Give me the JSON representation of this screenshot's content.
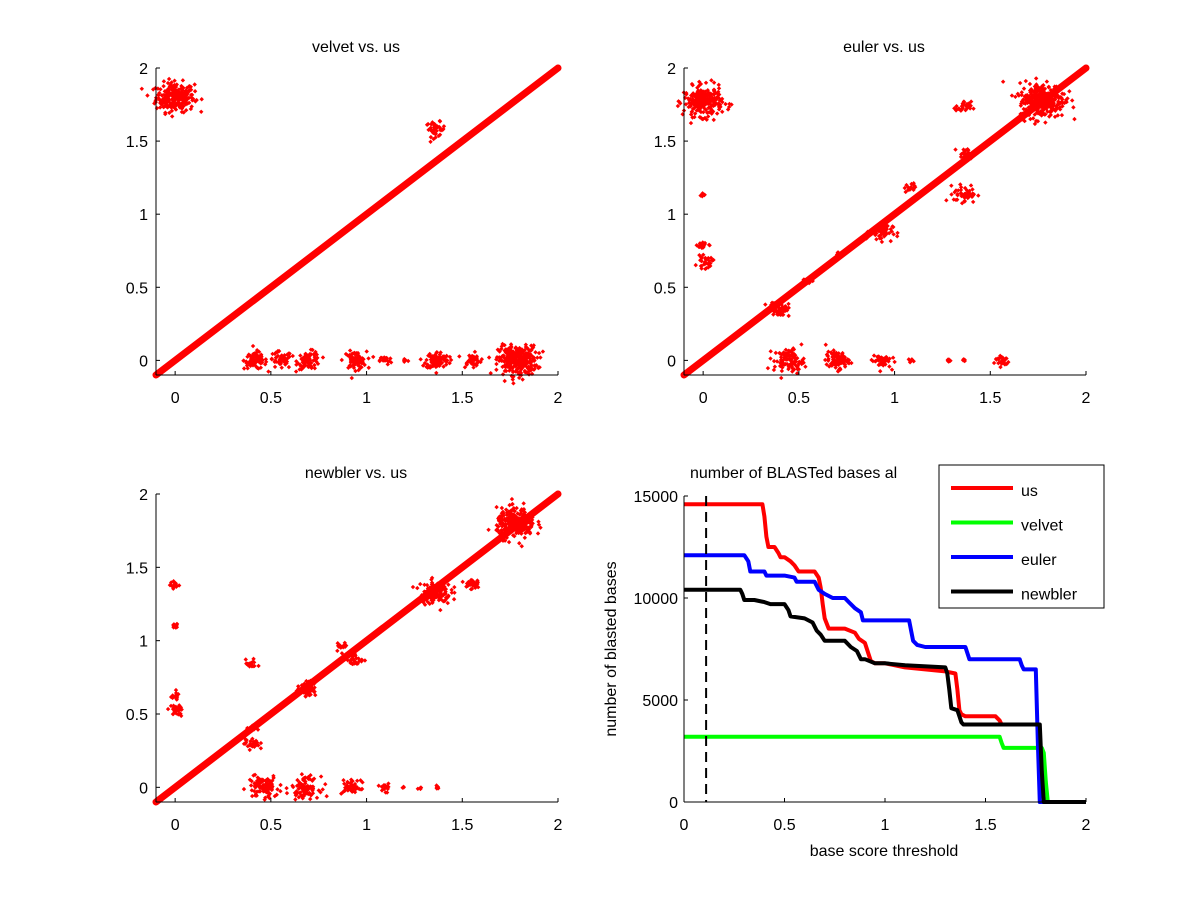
{
  "figure": {
    "background": "#ffffff"
  },
  "chart_data": [
    {
      "type": "scatter",
      "title": "velvet vs. us",
      "xlabel": "",
      "ylabel": "",
      "xlim": [
        -0.1,
        2
      ],
      "ylim": [
        -0.1,
        2
      ],
      "xticks": [
        0,
        0.5,
        1,
        1.5,
        2
      ],
      "xtick_labels": [
        "0",
        "0.5",
        "1",
        "1.5",
        "2"
      ],
      "yticks": [
        0,
        0.5,
        1,
        1.5,
        2
      ],
      "ytick_labels": [
        "0",
        "0.5",
        "1",
        "1.5",
        "2"
      ],
      "color": "#ff0000",
      "diagonal": {
        "from": -0.1,
        "to": 2
      },
      "clusters": [
        {
          "x": 0.0,
          "y": 1.8,
          "spread": 0.05,
          "count": 260
        },
        {
          "x": 1.36,
          "y": 1.58,
          "spread": 0.025,
          "count": 40
        },
        {
          "x": 0.42,
          "y": 0.0,
          "spread": 0.03,
          "count": 80
        },
        {
          "x": 0.55,
          "y": 0.0,
          "spread": 0.03,
          "count": 50
        },
        {
          "x": 0.7,
          "y": 0.0,
          "spread": 0.03,
          "count": 80
        },
        {
          "x": 0.94,
          "y": 0.0,
          "spread": 0.03,
          "count": 80
        },
        {
          "x": 1.1,
          "y": 0.0,
          "spread": 0.015,
          "count": 20
        },
        {
          "x": 1.2,
          "y": 0.0,
          "spread": 0.01,
          "count": 8
        },
        {
          "x": 1.37,
          "y": 0.0,
          "spread": 0.03,
          "count": 100
        },
        {
          "x": 1.55,
          "y": 0.0,
          "spread": 0.025,
          "count": 40
        },
        {
          "x": 1.79,
          "y": 0.0,
          "spread": 0.05,
          "count": 320
        }
      ]
    },
    {
      "type": "scatter",
      "title": "euler vs. us",
      "xlabel": "",
      "ylabel": "",
      "xlim": [
        -0.1,
        2
      ],
      "ylim": [
        -0.1,
        2
      ],
      "xticks": [
        0,
        0.5,
        1,
        1.5,
        2
      ],
      "xtick_labels": [
        "0",
        "0.5",
        "1",
        "1.5",
        "2"
      ],
      "yticks": [
        0,
        0.5,
        1,
        1.5,
        2
      ],
      "ytick_labels": [
        "0",
        "0.5",
        "1",
        "1.5",
        "2"
      ],
      "color": "#ff0000",
      "diagonal": {
        "from": -0.1,
        "to": 2
      },
      "clusters": [
        {
          "x": 0.0,
          "y": 1.77,
          "spread": 0.05,
          "count": 260
        },
        {
          "x": 0.0,
          "y": 1.13,
          "spread": 0.01,
          "count": 6
        },
        {
          "x": 0.0,
          "y": 0.79,
          "spread": 0.015,
          "count": 20
        },
        {
          "x": 0.01,
          "y": 0.67,
          "spread": 0.02,
          "count": 30
        },
        {
          "x": 0.4,
          "y": 0.35,
          "spread": 0.025,
          "count": 50
        },
        {
          "x": 0.55,
          "y": 0.55,
          "spread": 0.015,
          "count": 15
        },
        {
          "x": 0.71,
          "y": 0.72,
          "spread": 0.012,
          "count": 12
        },
        {
          "x": 0.93,
          "y": 0.88,
          "spread": 0.03,
          "count": 50
        },
        {
          "x": 1.08,
          "y": 1.18,
          "spread": 0.015,
          "count": 15
        },
        {
          "x": 1.36,
          "y": 1.73,
          "spread": 0.02,
          "count": 30
        },
        {
          "x": 1.37,
          "y": 1.41,
          "spread": 0.02,
          "count": 30
        },
        {
          "x": 1.37,
          "y": 1.14,
          "spread": 0.03,
          "count": 50
        },
        {
          "x": 1.77,
          "y": 1.78,
          "spread": 0.06,
          "count": 320
        },
        {
          "x": 0.45,
          "y": 0.0,
          "spread": 0.04,
          "count": 100
        },
        {
          "x": 0.7,
          "y": 0.0,
          "spread": 0.03,
          "count": 80
        },
        {
          "x": 0.93,
          "y": 0.0,
          "spread": 0.025,
          "count": 50
        },
        {
          "x": 1.08,
          "y": 0.0,
          "spread": 0.006,
          "count": 6
        },
        {
          "x": 1.28,
          "y": 0.0,
          "spread": 0.006,
          "count": 6
        },
        {
          "x": 1.36,
          "y": 0.0,
          "spread": 0.006,
          "count": 6
        },
        {
          "x": 1.56,
          "y": 0.0,
          "spread": 0.02,
          "count": 30
        }
      ]
    },
    {
      "type": "scatter",
      "title": "newbler vs. us",
      "xlabel": "",
      "ylabel": "",
      "xlim": [
        -0.1,
        2
      ],
      "ylim": [
        -0.1,
        2
      ],
      "xticks": [
        0,
        0.5,
        1,
        1.5,
        2
      ],
      "xtick_labels": [
        "0",
        "0.5",
        "1",
        "1.5",
        "2"
      ],
      "yticks": [
        0,
        0.5,
        1,
        1.5,
        2
      ],
      "ytick_labels": [
        "0",
        "0.5",
        "1",
        "1.5",
        "2"
      ],
      "color": "#ff0000",
      "diagonal": {
        "from": -0.1,
        "to": 2
      },
      "clusters": [
        {
          "x": 0.0,
          "y": 1.38,
          "spread": 0.012,
          "count": 15
        },
        {
          "x": 0.0,
          "y": 1.1,
          "spread": 0.012,
          "count": 12
        },
        {
          "x": 0.0,
          "y": 0.62,
          "spread": 0.012,
          "count": 15
        },
        {
          "x": 0.0,
          "y": 0.52,
          "spread": 0.02,
          "count": 30
        },
        {
          "x": 0.4,
          "y": 0.84,
          "spread": 0.015,
          "count": 20
        },
        {
          "x": 0.4,
          "y": 0.3,
          "spread": 0.02,
          "count": 30
        },
        {
          "x": 0.4,
          "y": 0.4,
          "spread": 0.015,
          "count": 12
        },
        {
          "x": 0.69,
          "y": 0.67,
          "spread": 0.025,
          "count": 50
        },
        {
          "x": 0.87,
          "y": 0.96,
          "spread": 0.015,
          "count": 20
        },
        {
          "x": 0.94,
          "y": 0.87,
          "spread": 0.02,
          "count": 30
        },
        {
          "x": 1.36,
          "y": 1.33,
          "spread": 0.04,
          "count": 120
        },
        {
          "x": 1.55,
          "y": 1.39,
          "spread": 0.02,
          "count": 30
        },
        {
          "x": 1.78,
          "y": 1.8,
          "spread": 0.05,
          "count": 260
        },
        {
          "x": 0.46,
          "y": 0.0,
          "spread": 0.04,
          "count": 100
        },
        {
          "x": 0.68,
          "y": 0.0,
          "spread": 0.035,
          "count": 90
        },
        {
          "x": 0.92,
          "y": 0.0,
          "spread": 0.025,
          "count": 50
        },
        {
          "x": 1.1,
          "y": 0.0,
          "spread": 0.015,
          "count": 15
        },
        {
          "x": 1.19,
          "y": 0.0,
          "spread": 0.005,
          "count": 4
        },
        {
          "x": 1.28,
          "y": 0.0,
          "spread": 0.005,
          "count": 4
        },
        {
          "x": 1.37,
          "y": 0.0,
          "spread": 0.008,
          "count": 8
        }
      ]
    },
    {
      "type": "line",
      "title": "number of BLASTed bases al",
      "xlabel": "base score threshold",
      "ylabel": "number of blasted bases",
      "xlim": [
        0,
        2
      ],
      "ylim": [
        0,
        15000
      ],
      "xticks": [
        0,
        0.5,
        1,
        1.5,
        2
      ],
      "xtick_labels": [
        "0",
        "0.5",
        "1",
        "1.5",
        "2"
      ],
      "yticks": [
        0,
        5000,
        10000,
        15000
      ],
      "ytick_labels": [
        "0",
        "5000",
        "10000",
        "15000"
      ],
      "grid": false,
      "legend_position": "top-right",
      "reference_line": {
        "x": 0.11,
        "style": "dashed",
        "color": "#000000"
      },
      "series": [
        {
          "name": "us",
          "color": "#ff0000",
          "x": [
            0,
            0.39,
            0.4,
            0.41,
            0.42,
            0.45,
            0.47,
            0.48,
            0.5,
            0.53,
            0.55,
            0.57,
            0.6,
            0.65,
            0.67,
            0.68,
            0.69,
            0.7,
            0.72,
            0.75,
            0.8,
            0.85,
            0.87,
            0.9,
            0.92,
            0.93,
            0.95,
            1.0,
            1.1,
            1.2,
            1.3,
            1.35,
            1.36,
            1.37,
            1.38,
            1.4,
            1.55,
            1.57,
            1.58
          ],
          "y": [
            14600,
            14600,
            14000,
            13000,
            12500,
            12500,
            12200,
            12000,
            12000,
            11800,
            11600,
            11300,
            11300,
            11300,
            11000,
            10500,
            9700,
            9000,
            8500,
            8500,
            8500,
            8300,
            8000,
            7800,
            7200,
            6900,
            6800,
            6800,
            6600,
            6500,
            6400,
            6300,
            5500,
            4500,
            4300,
            4200,
            4200,
            4000,
            3800
          ]
        },
        {
          "name": "velvet",
          "color": "#00ff00",
          "x": [
            0,
            1.57,
            1.58,
            1.59,
            1.78,
            1.79,
            1.8,
            1.81,
            2.0
          ],
          "y": [
            3200,
            3200,
            2900,
            2650,
            2650,
            2400,
            1000,
            0,
            0
          ]
        },
        {
          "name": "euler",
          "color": "#0000ff",
          "x": [
            0,
            0.3,
            0.32,
            0.33,
            0.4,
            0.41,
            0.5,
            0.55,
            0.56,
            0.65,
            0.67,
            0.7,
            0.74,
            0.8,
            0.82,
            0.85,
            0.88,
            0.89,
            0.95,
            1.12,
            1.13,
            1.14,
            1.16,
            1.2,
            1.4,
            1.41,
            1.42,
            1.6,
            1.67,
            1.68,
            1.69,
            1.75,
            1.76,
            1.77,
            1.78,
            2.0
          ],
          "y": [
            12100,
            12100,
            11800,
            11300,
            11300,
            11100,
            11100,
            11000,
            10800,
            10800,
            10400,
            10200,
            10000,
            10000,
            9800,
            9500,
            9300,
            8900,
            8900,
            8900,
            8400,
            7900,
            7700,
            7600,
            7600,
            7300,
            7000,
            7000,
            7000,
            6700,
            6500,
            6500,
            3000,
            0,
            0,
            0
          ]
        },
        {
          "name": "newbler",
          "color": "#000000",
          "x": [
            0,
            0.28,
            0.29,
            0.3,
            0.35,
            0.4,
            0.43,
            0.5,
            0.52,
            0.53,
            0.6,
            0.64,
            0.66,
            0.68,
            0.7,
            0.8,
            0.83,
            0.86,
            0.88,
            0.9,
            0.95,
            1.0,
            1.1,
            1.3,
            1.31,
            1.32,
            1.33,
            1.36,
            1.37,
            1.38,
            1.39,
            1.6,
            1.77,
            1.78,
            1.79,
            2.0
          ],
          "y": [
            10400,
            10400,
            10200,
            9900,
            9900,
            9800,
            9700,
            9700,
            9400,
            9100,
            9000,
            8800,
            8400,
            8200,
            7900,
            7900,
            7600,
            7400,
            7000,
            7000,
            6800,
            6800,
            6700,
            6600,
            6300,
            5500,
            4600,
            4500,
            4200,
            3900,
            3800,
            3800,
            3800,
            1500,
            0,
            0
          ]
        }
      ]
    }
  ]
}
